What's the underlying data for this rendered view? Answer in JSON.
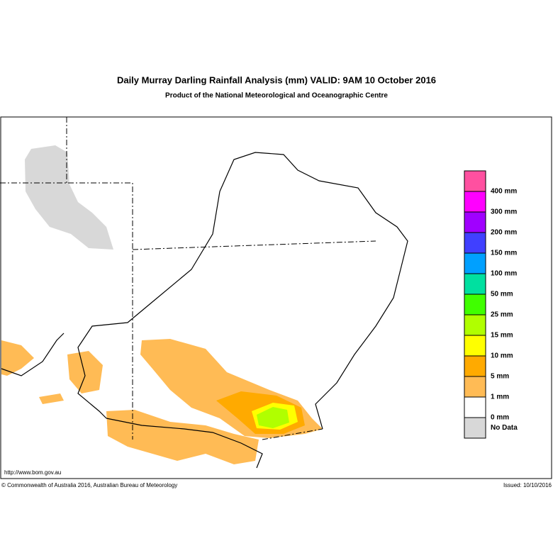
{
  "header": {
    "title": "Daily Murray Darling Rainfall Analysis (mm)  VALID: 9AM 10 October 2016",
    "subtitle": "Product of the National Meteorological and Oceanographic Centre"
  },
  "legend": {
    "swatches": [
      "#ff50a0",
      "#ff00ff",
      "#a000ff",
      "#4040ff",
      "#00a0ff",
      "#00e0a0",
      "#40ff00",
      "#b0ff00",
      "#ffff00",
      "#ffaa00",
      "#ffbb55",
      "#ffffff",
      "#d8d8d8"
    ],
    "labels": [
      "400 mm",
      "300 mm",
      "200 mm",
      "150 mm",
      "100 mm",
      "50 mm",
      "25 mm",
      "15 mm",
      "10 mm",
      "5 mm",
      "1 mm",
      "0 mm",
      "No Data"
    ]
  },
  "footer": {
    "url": "http://www.bom.gov.au",
    "copyright": "© Commonwealth of Australia 2016, Australian Bureau of Meteorology",
    "issued": "Issued: 10/10/2016"
  }
}
